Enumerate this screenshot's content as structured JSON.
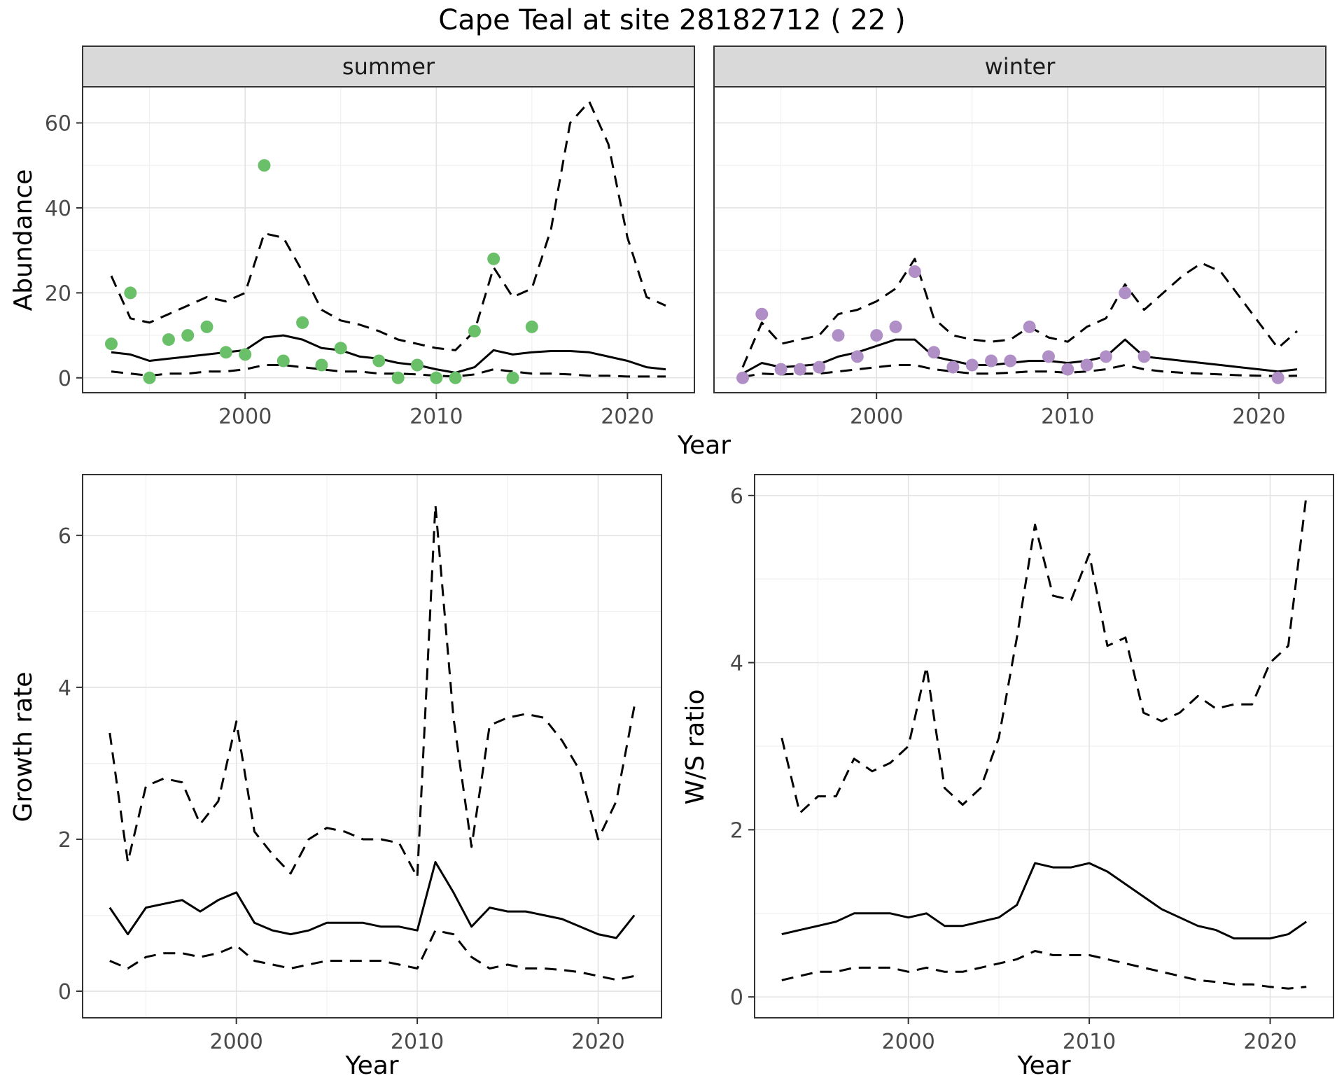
{
  "title": "Cape Teal at site 28182712 ( 22 )",
  "top_row": {
    "ylabel": "Abundance",
    "xlabel": "Year"
  },
  "colors": {
    "summer_points": "#6abf69",
    "winter_points": "#b08fc7",
    "line": "#000000",
    "strip_bg": "#d9d9d9",
    "panel_border": "#333333",
    "grid_major": "#e3e3e3",
    "grid_minor": "#f1f1f1"
  },
  "chart_data": [
    {
      "id": "abundance-summer",
      "type": "line+scatter",
      "facet_label": "summer",
      "ylabel": "Abundance",
      "xlabel": "Year",
      "xlim": [
        1991.5,
        2023.5
      ],
      "ylim": [
        -3.5,
        68.5
      ],
      "xticks": [
        2000,
        2010,
        2020
      ],
      "yticks": [
        0,
        20,
        40,
        60
      ],
      "x": [
        1993,
        1994,
        1995,
        1996,
        1997,
        1998,
        1999,
        2000,
        2001,
        2002,
        2003,
        2004,
        2005,
        2006,
        2007,
        2008,
        2009,
        2010,
        2011,
        2012,
        2013,
        2014,
        2015,
        2016,
        2017,
        2018,
        2019,
        2020,
        2021,
        2022
      ],
      "series": [
        {
          "name": "fit",
          "style": "solid",
          "values": [
            6,
            5.5,
            4,
            4.5,
            5,
            5.5,
            6,
            6.5,
            9.5,
            10,
            9,
            7,
            6.5,
            5,
            4.5,
            3.5,
            3,
            2,
            1.2,
            2.5,
            6.5,
            5.5,
            6,
            6.3,
            6.3,
            6,
            5,
            4,
            2.5,
            2
          ]
        },
        {
          "name": "upper-ci",
          "style": "dashed",
          "values": [
            24,
            14,
            13,
            15,
            17,
            19,
            18,
            20,
            34,
            33,
            25,
            16,
            13.5,
            12.5,
            11,
            9,
            8,
            7,
            6.5,
            11,
            26,
            19,
            21,
            35,
            60,
            65,
            55,
            33,
            19,
            17
          ]
        },
        {
          "name": "lower-ci",
          "style": "dashed",
          "values": [
            1.5,
            1,
            0.5,
            1,
            1,
            1.5,
            1.5,
            2,
            3,
            3,
            2.5,
            2,
            1.5,
            1.5,
            1,
            1,
            0.8,
            0.5,
            0.3,
            0.8,
            2,
            1.5,
            1,
            1,
            0.8,
            0.5,
            0.5,
            0.3,
            0.3,
            0.3
          ]
        }
      ],
      "points": {
        "name": "observed-counts",
        "color": "#6abf69",
        "x": [
          1993,
          1994,
          1995,
          1996,
          1997,
          1998,
          1999,
          2000,
          2001,
          2002,
          2003,
          2004,
          2005,
          2007,
          2008,
          2009,
          2010,
          2011,
          2012,
          2013,
          2014,
          2015
        ],
        "y": [
          8,
          20,
          0,
          9,
          10,
          12,
          6,
          5.5,
          50,
          4,
          13,
          3,
          7,
          4,
          0,
          3,
          0,
          0,
          11,
          28,
          0,
          12
        ]
      }
    },
    {
      "id": "abundance-winter",
      "type": "line+scatter",
      "facet_label": "winter",
      "ylabel": "Abundance",
      "xlabel": "Year",
      "xlim": [
        1991.5,
        2023.5
      ],
      "ylim": [
        -3.5,
        68.5
      ],
      "xticks": [
        2000,
        2010,
        2020
      ],
      "yticks": [
        0,
        20,
        40,
        60
      ],
      "x": [
        1993,
        1994,
        1995,
        1996,
        1997,
        1998,
        1999,
        2000,
        2001,
        2002,
        2003,
        2004,
        2005,
        2006,
        2007,
        2008,
        2009,
        2010,
        2011,
        2012,
        2013,
        2014,
        2015,
        2016,
        2017,
        2018,
        2019,
        2020,
        2021,
        2022
      ],
      "series": [
        {
          "name": "fit",
          "style": "solid",
          "values": [
            1,
            3.5,
            2.5,
            2.8,
            3.2,
            5,
            6,
            7.5,
            9,
            9,
            5,
            4,
            3,
            3,
            3.5,
            4,
            4,
            3.5,
            4,
            5,
            9,
            5,
            4.5,
            4,
            3.5,
            3,
            2.5,
            2,
            1.5,
            2
          ]
        },
        {
          "name": "upper-ci",
          "style": "dashed",
          "values": [
            2.5,
            13,
            8,
            9,
            10,
            15,
            16,
            18,
            21,
            28,
            14,
            10,
            9,
            8.5,
            9,
            12,
            9.5,
            8.5,
            12,
            14,
            22,
            16,
            20,
            24,
            27,
            25,
            19,
            13,
            7,
            11
          ]
        },
        {
          "name": "lower-ci",
          "style": "dashed",
          "values": [
            0.2,
            1,
            0.8,
            1,
            1,
            1.5,
            2,
            2.5,
            3,
            3,
            2,
            1.5,
            1,
            1,
            1.2,
            1.5,
            1.5,
            1.2,
            1.5,
            2,
            3,
            2,
            1.5,
            1.2,
            1,
            0.8,
            0.6,
            0.5,
            0.4,
            0.5
          ]
        }
      ],
      "points": {
        "name": "observed-counts",
        "color": "#b08fc7",
        "x": [
          1993,
          1994,
          1995,
          1996,
          1997,
          1998,
          1999,
          2000,
          2001,
          2002,
          2003,
          2004,
          2005,
          2006,
          2007,
          2008,
          2009,
          2010,
          2011,
          2012,
          2013,
          2014,
          2021
        ],
        "y": [
          0,
          15,
          2,
          2,
          2.5,
          10,
          5,
          10,
          12,
          25,
          6,
          2.5,
          3,
          4,
          4,
          12,
          5,
          2,
          3,
          5,
          20,
          5,
          0
        ]
      }
    },
    {
      "id": "growth-rate",
      "type": "line",
      "ylabel": "Growth rate",
      "xlabel": "Year",
      "xlim": [
        1991.5,
        2023.5
      ],
      "ylim": [
        -0.35,
        6.8
      ],
      "xticks": [
        2000,
        2010,
        2020
      ],
      "yticks": [
        0,
        2,
        4,
        6
      ],
      "x": [
        1993,
        1994,
        1995,
        1996,
        1997,
        1998,
        1999,
        2000,
        2001,
        2002,
        2003,
        2004,
        2005,
        2006,
        2007,
        2008,
        2009,
        2010,
        2011,
        2012,
        2013,
        2014,
        2015,
        2016,
        2017,
        2018,
        2019,
        2020,
        2021,
        2022
      ],
      "series": [
        {
          "name": "fit",
          "style": "solid",
          "values": [
            1.1,
            0.75,
            1.1,
            1.15,
            1.2,
            1.05,
            1.2,
            1.3,
            0.9,
            0.8,
            0.75,
            0.8,
            0.9,
            0.9,
            0.9,
            0.85,
            0.85,
            0.8,
            1.7,
            1.3,
            0.85,
            1.1,
            1.05,
            1.05,
            1,
            0.95,
            0.85,
            0.75,
            0.7,
            1
          ]
        },
        {
          "name": "upper-ci",
          "style": "dashed",
          "values": [
            3.4,
            1.7,
            2.7,
            2.8,
            2.75,
            2.2,
            2.5,
            3.55,
            2.1,
            1.8,
            1.55,
            2,
            2.15,
            2.1,
            2,
            2,
            1.95,
            1.5,
            6.4,
            3.6,
            1.9,
            3.5,
            3.6,
            3.65,
            3.6,
            3.3,
            2.9,
            2,
            2.5,
            3.75
          ]
        },
        {
          "name": "lower-ci",
          "style": "dashed",
          "values": [
            0.4,
            0.3,
            0.45,
            0.5,
            0.5,
            0.45,
            0.5,
            0.6,
            0.4,
            0.35,
            0.3,
            0.35,
            0.4,
            0.4,
            0.4,
            0.4,
            0.35,
            0.3,
            0.8,
            0.75,
            0.45,
            0.3,
            0.35,
            0.3,
            0.3,
            0.28,
            0.25,
            0.2,
            0.15,
            0.2
          ]
        }
      ]
    },
    {
      "id": "ws-ratio",
      "type": "line",
      "ylabel": "W/S ratio",
      "xlabel": "Year",
      "xlim": [
        1991.5,
        2023.5
      ],
      "ylim": [
        -0.25,
        6.25
      ],
      "xticks": [
        2000,
        2010,
        2020
      ],
      "yticks": [
        0,
        2,
        4,
        6
      ],
      "x": [
        1993,
        1994,
        1995,
        1996,
        1997,
        1998,
        1999,
        2000,
        2001,
        2002,
        2003,
        2004,
        2005,
        2006,
        2007,
        2008,
        2009,
        2010,
        2011,
        2012,
        2013,
        2014,
        2015,
        2016,
        2017,
        2018,
        2019,
        2020,
        2021,
        2022
      ],
      "series": [
        {
          "name": "fit",
          "style": "solid",
          "values": [
            0.75,
            0.8,
            0.85,
            0.9,
            1,
            1,
            1,
            0.95,
            1,
            0.85,
            0.85,
            0.9,
            0.95,
            1.1,
            1.6,
            1.55,
            1.55,
            1.6,
            1.5,
            1.35,
            1.2,
            1.05,
            0.95,
            0.85,
            0.8,
            0.7,
            0.7,
            0.7,
            0.75,
            0.9
          ]
        },
        {
          "name": "upper-ci",
          "style": "dashed",
          "values": [
            3.1,
            2.2,
            2.4,
            2.4,
            2.85,
            2.7,
            2.8,
            3,
            3.95,
            2.5,
            2.3,
            2.5,
            3.1,
            4.3,
            5.65,
            4.8,
            4.75,
            5.3,
            4.2,
            4.3,
            3.4,
            3.3,
            3.4,
            3.6,
            3.45,
            3.5,
            3.5,
            4,
            4.2,
            6
          ]
        },
        {
          "name": "lower-ci",
          "style": "dashed",
          "values": [
            0.2,
            0.25,
            0.3,
            0.3,
            0.35,
            0.35,
            0.35,
            0.3,
            0.35,
            0.3,
            0.3,
            0.35,
            0.4,
            0.45,
            0.55,
            0.5,
            0.5,
            0.5,
            0.45,
            0.4,
            0.35,
            0.3,
            0.25,
            0.2,
            0.18,
            0.15,
            0.15,
            0.12,
            0.1,
            0.12
          ]
        }
      ]
    }
  ]
}
